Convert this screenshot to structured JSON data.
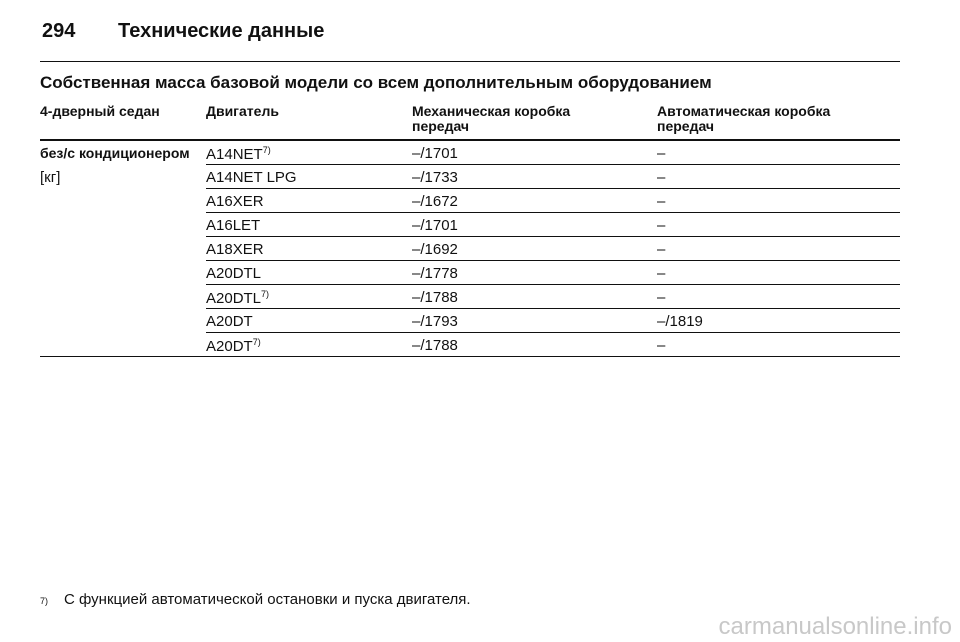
{
  "header": {
    "page_number": "294",
    "title": "Технические данные"
  },
  "section_title": "Собственная масса базовой модели со всем дополнительным оборудованием",
  "table": {
    "columns": [
      "4-дверный седан",
      "Двигатель",
      "Механическая коробка передач",
      "Автоматическая коробка передач"
    ],
    "row_label": "без/с кондиционером",
    "unit": "[кг]",
    "rows": [
      {
        "engine": "A14NET",
        "note": "7)",
        "manual": "–/1701",
        "auto": "–"
      },
      {
        "engine": "A14NET LPG",
        "manual": "–/1733",
        "auto": "–"
      },
      {
        "engine": "A16XER",
        "manual": "–/1672",
        "auto": "–"
      },
      {
        "engine": "A16LET",
        "manual": "–/1701",
        "auto": "–"
      },
      {
        "engine": "A18XER",
        "manual": "–/1692",
        "auto": "–"
      },
      {
        "engine": "A20DTL",
        "manual": "–/1778",
        "auto": "–"
      },
      {
        "engine": "A20DTL",
        "note": "7)",
        "manual": "–/1788",
        "auto": "–"
      },
      {
        "engine": "A20DT",
        "manual": "–/1793",
        "auto": "–/1819"
      },
      {
        "engine": "A20DT",
        "note": "7)",
        "manual": "–/1788",
        "auto": "–"
      }
    ]
  },
  "footnote": {
    "mark": "7)",
    "text": "С функцией автоматической остановки и пуска двигателя."
  },
  "watermark": "carmanualsonline.info"
}
